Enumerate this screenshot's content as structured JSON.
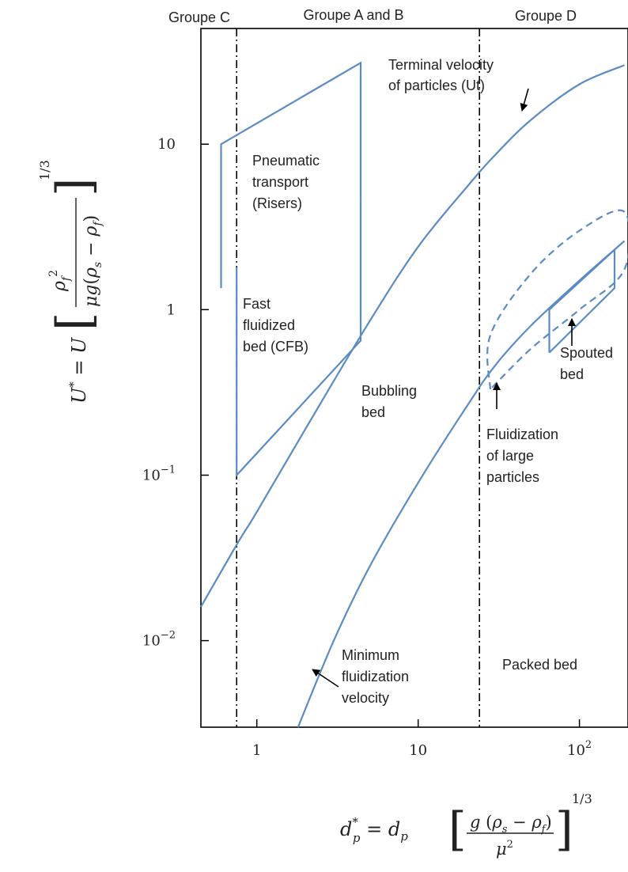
{
  "chart_data": {
    "type": "line",
    "x_scale": "log",
    "y_scale": "log",
    "xlim": [
      0.45,
      200
    ],
    "ylim": [
      0.003,
      50
    ],
    "grid": false,
    "x_ticks": [
      {
        "value": 1,
        "label": "1"
      },
      {
        "value": 10,
        "label": "10"
      },
      {
        "value": 100,
        "label": "10",
        "sup": "2"
      }
    ],
    "y_ticks": [
      {
        "value": 10,
        "label": "10"
      },
      {
        "value": 1,
        "label": "1"
      },
      {
        "value": 0.1,
        "label": "10",
        "sup": "−1"
      },
      {
        "value": 0.01,
        "label": "10",
        "sup": "−2"
      }
    ],
    "xlabel": "d*p = dp [g(ρs − ρf)/μ²]^(1/3)",
    "ylabel": "U* = U [ρf²/(μg(ρs − ρf))]^(1/3)",
    "group_boundaries": [
      0.75,
      24
    ],
    "group_labels": [
      "Groupe C",
      "Groupe A and B",
      "Groupe D"
    ],
    "series": [
      {
        "name": "Terminal velocity of particles (Ut)",
        "style": "solid",
        "points": [
          [
            0.45,
            0.016
          ],
          [
            0.75,
            0.038
          ],
          [
            1,
            0.06
          ],
          [
            2,
            0.19
          ],
          [
            5,
            0.85
          ],
          [
            10,
            2.4
          ],
          [
            20,
            5.5
          ],
          [
            30,
            8.6
          ],
          [
            50,
            14
          ],
          [
            100,
            23
          ],
          [
            190,
            30
          ]
        ]
      },
      {
        "name": "Minimum fluidization velocity",
        "style": "solid",
        "points": [
          [
            1.8,
            0.003
          ],
          [
            3,
            0.01
          ],
          [
            5,
            0.028
          ],
          [
            10,
            0.09
          ],
          [
            20,
            0.26
          ],
          [
            30,
            0.46
          ],
          [
            50,
            0.8
          ],
          [
            100,
            1.5
          ],
          [
            190,
            2.6
          ]
        ]
      }
    ],
    "regions": [
      {
        "name": "Pneumatic transport (Risers)",
        "style": "solid",
        "points": [
          [
            0.6,
            1.35
          ],
          [
            0.6,
            10
          ],
          [
            4.4,
            31
          ],
          [
            4.4,
            4.5
          ]
        ]
      },
      {
        "name": "Fast fluidized bed (CFB)",
        "style": "solid",
        "points": [
          [
            0.75,
            1.8
          ],
          [
            0.75,
            0.1
          ],
          [
            4.4,
            0.65
          ],
          [
            4.4,
            4.5
          ]
        ]
      },
      {
        "name": "Fluidization of large particles",
        "style": "dashed",
        "points": [
          [
            28,
            0.33
          ],
          [
            28,
            0.7
          ],
          [
            50,
            1.65
          ],
          [
            100,
            3
          ],
          [
            190,
            3.9
          ],
          [
            190,
            1.75
          ],
          [
            100,
            1.0
          ],
          [
            50,
            0.58
          ],
          [
            28,
            0.33
          ]
        ]
      },
      {
        "name": "Spouted bed",
        "style": "solid",
        "points": [
          [
            65,
            0.55
          ],
          [
            65,
            1.0
          ],
          [
            165,
            2.3
          ],
          [
            165,
            1.35
          ],
          [
            65,
            0.55
          ]
        ]
      }
    ],
    "annotations": [
      {
        "lines": [
          "Terminal velocity",
          "of particles (Ut)"
        ]
      },
      {
        "lines": [
          "Pneumatic",
          "transport",
          "(Risers)"
        ]
      },
      {
        "lines": [
          "Fast",
          "fluidized",
          "bed (CFB)"
        ]
      },
      {
        "lines": [
          "Bubbling",
          "bed"
        ]
      },
      {
        "lines": [
          "Spouted",
          "bed"
        ]
      },
      {
        "lines": [
          "Fluidization",
          "of large",
          "particles"
        ]
      },
      {
        "lines": [
          "Minimum",
          "fluidization",
          "velocity"
        ]
      },
      {
        "lines": [
          "Packed bed"
        ]
      }
    ],
    "colors": {
      "curve": "#5b8bc5",
      "axis": "#000000",
      "text": "#222222"
    }
  }
}
